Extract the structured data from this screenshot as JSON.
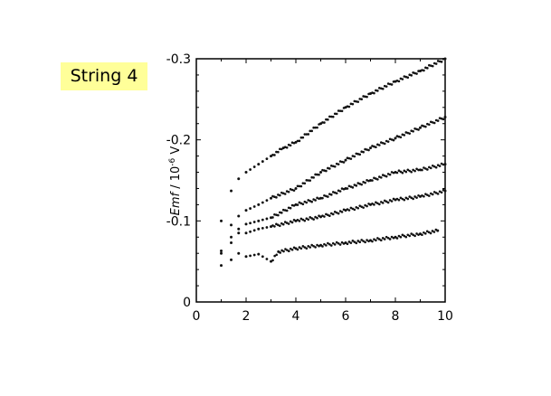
{
  "chart_data": {
    "type": "scatter",
    "annotation": "String 4",
    "xlabel": "",
    "ylabel": "Emf / 10^-6 V",
    "ylabel_parts": {
      "main": "Emf",
      "sep": " / 10",
      "exp": "-6",
      "unit": " V"
    },
    "xlim": [
      0,
      10
    ],
    "ylim": [
      0,
      -0.3
    ],
    "xticks": [
      "0",
      "2",
      "4",
      "6",
      "8",
      "10"
    ],
    "yticks": [
      "0",
      "-0.1",
      "-0.2",
      "-0.3"
    ],
    "grid": false,
    "marker_color": "#111111",
    "highlight_color": "#ffff99",
    "series": [
      {
        "x": [
          1.4,
          1.7,
          2,
          2.5,
          3,
          3.5,
          4,
          5,
          6,
          7,
          8,
          9,
          10
        ],
        "y": [
          -0.137,
          -0.152,
          -0.16,
          -0.17,
          -0.18,
          -0.19,
          -0.197,
          -0.22,
          -0.24,
          -0.257,
          -0.272,
          -0.285,
          -0.3
        ]
      },
      {
        "x": [
          1.0,
          1.4,
          1.7,
          2,
          2.5,
          3,
          4,
          5,
          6,
          7,
          8,
          9,
          10
        ],
        "y": [
          -0.1,
          -0.095,
          -0.106,
          -0.113,
          -0.12,
          -0.128,
          -0.14,
          -0.16,
          -0.175,
          -0.19,
          -0.202,
          -0.215,
          -0.228
        ]
      },
      {
        "x": [
          1.0,
          1.4,
          1.7,
          2,
          2.5,
          3,
          4,
          5,
          6,
          7,
          8,
          9,
          10
        ],
        "y": [
          -0.063,
          -0.08,
          -0.09,
          -0.096,
          -0.1,
          -0.104,
          -0.12,
          -0.128,
          -0.14,
          -0.15,
          -0.16,
          -0.163,
          -0.17
        ]
      },
      {
        "x": [
          1.0,
          1.4,
          1.7,
          2,
          2.5,
          3,
          4,
          5,
          6,
          7,
          8,
          9,
          10
        ],
        "y": [
          -0.06,
          -0.073,
          -0.085,
          -0.085,
          -0.09,
          -0.093,
          -0.1,
          -0.105,
          -0.113,
          -0.12,
          -0.126,
          -0.13,
          -0.137
        ]
      },
      {
        "x": [
          1.0,
          1.4,
          1.7,
          2,
          2.5,
          3,
          3.3,
          4,
          5,
          6,
          7,
          8,
          9,
          9.7
        ],
        "y": [
          -0.045,
          -0.052,
          -0.06,
          -0.056,
          -0.059,
          -0.05,
          -0.062,
          -0.066,
          -0.07,
          -0.073,
          -0.076,
          -0.08,
          -0.084,
          -0.088
        ]
      }
    ]
  }
}
